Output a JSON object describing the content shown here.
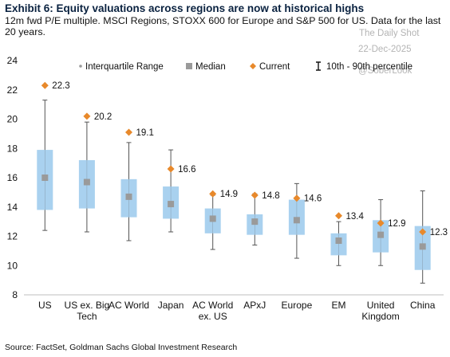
{
  "title": "Exhibit 6: Equity valuations across regions are now at historical highs",
  "subtitle": "12m fwd P/E multiple. MSCI Regions, STOXX 600 for Europe and S&P 500 for US. Data for the last 20 years.",
  "watermark": {
    "name": "The Daily Shot",
    "date": "22-Dec-2025",
    "handle": "@SoberLook"
  },
  "source": "Source: FactSet, Goldman Sachs Global Investment Research",
  "colors": {
    "iqr_box": "#a9d1ef",
    "median": "#9a9a9a",
    "current": "#e8892b",
    "whisker": "#555555"
  },
  "chart_data": {
    "type": "box",
    "title": "Exhibit 6: Equity valuations across regions are now at historical highs",
    "xlabel": "",
    "ylabel": "",
    "ylim": [
      8,
      24
    ],
    "yticks": [
      8,
      10,
      12,
      14,
      16,
      18,
      20,
      22,
      24
    ],
    "grid": false,
    "legend_position": "top",
    "legend": [
      {
        "key": "iqr",
        "label": "Interquartile Range"
      },
      {
        "key": "median",
        "label": "Median"
      },
      {
        "key": "current",
        "label": "Current"
      },
      {
        "key": "range",
        "label": "10th - 90th percentile"
      }
    ],
    "categories": [
      {
        "name": "US",
        "label_lines": [
          "US"
        ],
        "p10": 12.4,
        "q1": 13.8,
        "median": 16.0,
        "q3": 17.9,
        "p90": 21.3,
        "current": 22.3,
        "current_label": "22.3"
      },
      {
        "name": "US ex. Big Tech",
        "label_lines": [
          "US ex. Big",
          "Tech"
        ],
        "p10": 12.3,
        "q1": 13.9,
        "median": 15.7,
        "q3": 17.2,
        "p90": 19.8,
        "current": 20.2,
        "current_label": "20.2"
      },
      {
        "name": "AC World",
        "label_lines": [
          "AC World"
        ],
        "p10": 11.7,
        "q1": 13.3,
        "median": 14.7,
        "q3": 15.9,
        "p90": 18.4,
        "current": 19.1,
        "current_label": "19.1"
      },
      {
        "name": "Japan",
        "label_lines": [
          "Japan"
        ],
        "p10": 12.3,
        "q1": 13.2,
        "median": 14.2,
        "q3": 15.4,
        "p90": 17.9,
        "current": 16.6,
        "current_label": "16.6"
      },
      {
        "name": "AC World ex. US",
        "label_lines": [
          "AC World",
          "ex. US"
        ],
        "p10": 11.1,
        "q1": 12.2,
        "median": 13.2,
        "q3": 13.9,
        "p90": 14.8,
        "current": 14.9,
        "current_label": "14.9"
      },
      {
        "name": "APxJ",
        "label_lines": [
          "APxJ"
        ],
        "p10": 11.4,
        "q1": 12.1,
        "median": 13.0,
        "q3": 13.5,
        "p90": 14.9,
        "current": 14.8,
        "current_label": "14.8"
      },
      {
        "name": "Europe",
        "label_lines": [
          "Europe"
        ],
        "p10": 10.5,
        "q1": 12.1,
        "median": 13.1,
        "q3": 14.5,
        "p90": 15.6,
        "current": 14.6,
        "current_label": "14.6"
      },
      {
        "name": "EM",
        "label_lines": [
          "EM"
        ],
        "p10": 10.0,
        "q1": 10.7,
        "median": 11.7,
        "q3": 12.2,
        "p90": 13.0,
        "current": 13.4,
        "current_label": "13.4"
      },
      {
        "name": "United Kingdom",
        "label_lines": [
          "United",
          "Kingdom"
        ],
        "p10": 10.0,
        "q1": 10.9,
        "median": 12.1,
        "q3": 13.1,
        "p90": 14.5,
        "current": 12.9,
        "current_label": "12.9"
      },
      {
        "name": "China",
        "label_lines": [
          "China"
        ],
        "p10": 8.8,
        "q1": 9.7,
        "median": 11.3,
        "q3": 12.7,
        "p90": 15.1,
        "current": 12.3,
        "current_label": "12.3"
      }
    ]
  }
}
